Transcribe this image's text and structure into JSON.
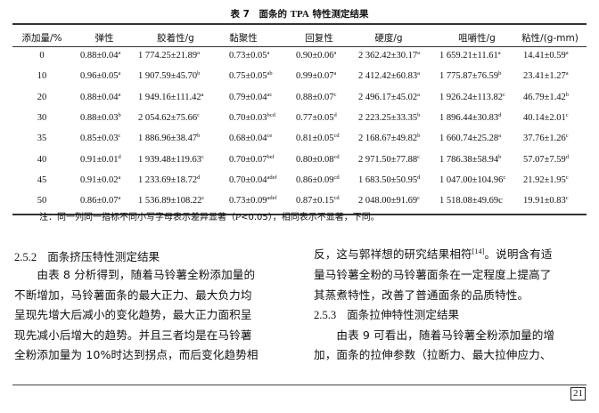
{
  "table": {
    "caption_prefix": "表 7　面条的 ",
    "caption_tpa": "TPA",
    "caption_suffix": " 特性测定结果",
    "headers": [
      "添加量/%",
      "弹性",
      "胶着性/g",
      "黏聚性",
      "回复性",
      "硬度/g",
      "咀嚼性/g",
      "粘性/(g-mm)"
    ],
    "rows": [
      [
        [
          "0",
          ""
        ],
        [
          "0.88±0.04",
          "a"
        ],
        [
          "1 774.25±21.89",
          "a"
        ],
        [
          "0.73±0.05",
          "a"
        ],
        [
          "0.90±0.06",
          "a"
        ],
        [
          "2 362.42±30.17",
          "a"
        ],
        [
          "1 659.21±11.61",
          "a"
        ],
        [
          "14.41±0.59",
          "a"
        ]
      ],
      [
        [
          "10",
          ""
        ],
        [
          "0.96±0.05",
          "a"
        ],
        [
          "1 907.59±45.70",
          "b"
        ],
        [
          "0.75±0.05",
          "ab"
        ],
        [
          "0.99±0.07",
          "a"
        ],
        [
          "2 412.42±60.83",
          "a"
        ],
        [
          "1 775.87±76.59",
          "b"
        ],
        [
          "23.41±1.27",
          "a"
        ]
      ],
      [
        [
          "20",
          ""
        ],
        [
          "0.88±0.04",
          "a"
        ],
        [
          "1 949.16±111.42",
          "a"
        ],
        [
          "0.79±0.04",
          "ac"
        ],
        [
          "0.88±0.07",
          "c"
        ],
        [
          "2 496.17±45.02",
          "a"
        ],
        [
          "1 926.24±113.82",
          "c"
        ],
        [
          "46.79±1.42",
          "b"
        ]
      ],
      [
        [
          "30",
          ""
        ],
        [
          "0.88±0.03",
          "b"
        ],
        [
          "2 054.62±75.66",
          "c"
        ],
        [
          "0.70±0.03",
          "bcd"
        ],
        [
          "0.77±0.05",
          "d"
        ],
        [
          "2 223.25±33.35",
          "b"
        ],
        [
          "1 896.44±30.83",
          "d"
        ],
        [
          "40.14±2.01",
          "c"
        ]
      ],
      [
        [
          "35",
          ""
        ],
        [
          "0.85±0.03",
          "c"
        ],
        [
          "1 886.96±38.47",
          "b"
        ],
        [
          "0.68±0.04",
          "ce"
        ],
        [
          "0.81±0.05",
          "cd"
        ],
        [
          "2 168.67±49.82",
          "b"
        ],
        [
          "1 660.74±25.28",
          "a"
        ],
        [
          "37.76±1.26",
          "c"
        ]
      ],
      [
        [
          "40",
          ""
        ],
        [
          "0.91±0.01",
          "d"
        ],
        [
          "1 939.48±119.63",
          "c"
        ],
        [
          "0.70±0.07",
          "bef"
        ],
        [
          "0.80±0.08",
          "cd"
        ],
        [
          "2 971.50±77.88",
          "c"
        ],
        [
          "1 786.38±58.94",
          "b"
        ],
        [
          "57.07±7.59",
          "d"
        ]
      ],
      [
        [
          "45",
          ""
        ],
        [
          "0.91±0.02",
          "a"
        ],
        [
          "1 233.69±18.72",
          "d"
        ],
        [
          "0.70±0.04",
          "adef"
        ],
        [
          "0.86±0.09",
          "cd"
        ],
        [
          "1 683.50±50.95",
          "d"
        ],
        [
          "1 047.00±104.96",
          "c"
        ],
        [
          "21.92±1.95",
          "c"
        ]
      ],
      [
        [
          "50",
          ""
        ],
        [
          "0.86±0.07",
          "a"
        ],
        [
          "1 536.89±108.22",
          "c"
        ],
        [
          "0.73±0.09",
          "adef"
        ],
        [
          "0.87±0.15",
          "cd"
        ],
        [
          "2 048.00±91.69",
          "c"
        ],
        [
          "1 518.08±49.69c",
          ""
        ],
        [
          "19.91±0.83",
          "c"
        ]
      ]
    ],
    "note_prefix": "注：同一列同一指标不同小写字母表示差异显著（",
    "note_p": "P",
    "note_mid": "<0.05），相同表示不显著，下同。"
  },
  "left_column": {
    "section_number": "2.5.2",
    "section_title": "面条挤压特性测定结果",
    "lines": [
      "　　由表 8 分析得到，随着马铃薯全粉添加量的",
      "不断增加，马铃薯面条的最大正力、最大负力均",
      "呈现先增大后减小的变化趋势，最大正力面积呈",
      "现先减小后增大的趋势。并且三者均是在马铃薯",
      "全粉添加量为 10%时达到拐点，而后变化趋势相"
    ]
  },
  "right_column": {
    "line1_before": "反，这与郭祥想的研究结果相符",
    "line1_ref": "[14]",
    "line1_after": "。说明含有适",
    "lines": [
      "量马铃薯全粉的马铃薯面条在一定程度上提高了",
      "其蒸煮特性，改善了普通面条的品质特性。"
    ],
    "section_number": "2.5.3",
    "section_title": "面条拉伸特性测定结果",
    "lines2": [
      "　　由表 9 可看出，随着马铃薯全粉添加量的增",
      "加，面条的拉伸参数（拉断力、最大拉伸应力、"
    ]
  },
  "page_number": "21"
}
